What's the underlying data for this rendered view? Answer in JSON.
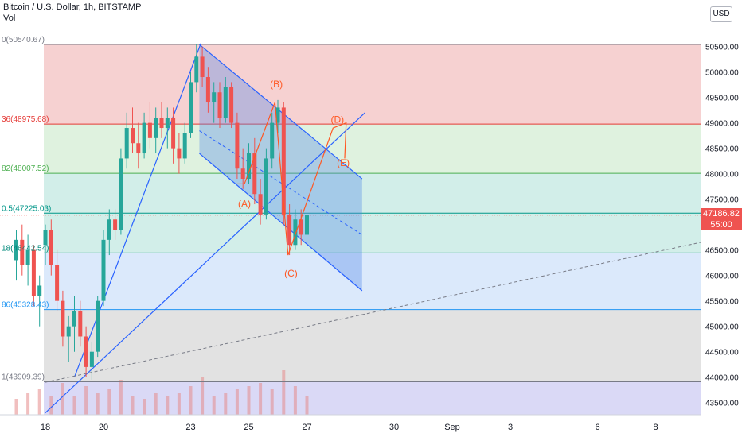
{
  "header": {
    "symbol": "Bitcoin / U.S. Dollar, 1h, BITSTAMP",
    "vol_label": "Vol",
    "currency_button": "USD"
  },
  "price_tag": {
    "price": "47186.82",
    "countdown": "55:00"
  },
  "colors": {
    "red_zone": "#f6d1d1",
    "green_zone": "#dff2df",
    "teal_zone": "#d2eee9",
    "blue_zone": "#dbe9fb",
    "gray_zone": "#e2e2e2",
    "lilac_zone": "#dad9f6",
    "channel_fill": "#4f86e8",
    "up_candle": "#26a69a",
    "down_candle": "#ef5350",
    "trend_line": "#2962ff",
    "wave": "#ff5722"
  },
  "chart_data": {
    "type": "candlestick",
    "title": "Bitcoin / U.S. Dollar, 1h, BITSTAMP",
    "x_ticks": [
      {
        "day": 18,
        "label": "18"
      },
      {
        "day": 20,
        "label": "20"
      },
      {
        "day": 23,
        "label": "23"
      },
      {
        "day": 25,
        "label": "25"
      },
      {
        "day": 27,
        "label": "27"
      },
      {
        "day": 30,
        "label": "30"
      },
      {
        "day": 32,
        "label": "Sep"
      },
      {
        "day": 34,
        "label": "3"
      },
      {
        "day": 37,
        "label": "6"
      },
      {
        "day": 39,
        "label": "8"
      }
    ],
    "y_ticks": [
      "50500.00",
      "50000.00",
      "49500.00",
      "49000.00",
      "48500.00",
      "48000.00",
      "47500.00",
      "47000.00",
      "46500.00",
      "46000.00",
      "45500.00",
      "45000.00",
      "44500.00",
      "44000.00",
      "43500.00"
    ],
    "y_values": [
      50500,
      50000,
      49500,
      49000,
      48500,
      48000,
      47500,
      47000,
      46500,
      46000,
      45500,
      45000,
      44500,
      44000,
      43500
    ],
    "ylim": [
      43300,
      51200
    ],
    "last_price": 47186.82,
    "fib_levels": [
      {
        "label": "0(50540.67)",
        "price": 50540.67,
        "color": "#787b86"
      },
      {
        "label": "36(48975.68)",
        "price": 48975.68,
        "color": "#e53935"
      },
      {
        "label": "82(48007.52)",
        "price": 48007.52,
        "color": "#4caf50"
      },
      {
        "label": "0.5(47225.03)",
        "price": 47225.03,
        "color": "#009688"
      },
      {
        "label": "18(46442.54)",
        "price": 46442.54,
        "color": "#00897b"
      },
      {
        "label": "86(45328.43)",
        "price": 45328.43,
        "color": "#2196f3"
      },
      {
        "label": "1(43909.39)",
        "price": 43909.39,
        "color": "#787b86"
      }
    ],
    "wave_labels": [
      {
        "label": "(A)",
        "day": 24.85,
        "price": 47350
      },
      {
        "label": "(B)",
        "day": 25.95,
        "price": 49700
      },
      {
        "label": "(C)",
        "day": 26.45,
        "price": 45980
      },
      {
        "label": "(D)",
        "day": 28.05,
        "price": 49000
      },
      {
        "label": "(E)",
        "day": 28.25,
        "price": 48150
      }
    ],
    "candles": [
      {
        "d": 17.0,
        "o": 46300,
        "h": 46900,
        "l": 45900,
        "c": 46700
      },
      {
        "d": 17.2,
        "o": 46700,
        "h": 47000,
        "l": 46000,
        "c": 46200
      },
      {
        "d": 17.4,
        "o": 46200,
        "h": 46800,
        "l": 45800,
        "c": 46500
      },
      {
        "d": 17.6,
        "o": 46500,
        "h": 46600,
        "l": 45400,
        "c": 45600
      },
      {
        "d": 17.8,
        "o": 45600,
        "h": 46000,
        "l": 45000,
        "c": 45800
      },
      {
        "d": 18.0,
        "o": 46600,
        "h": 47000,
        "l": 46200,
        "c": 46900
      },
      {
        "d": 18.2,
        "o": 46900,
        "h": 47100,
        "l": 46000,
        "c": 46200
      },
      {
        "d": 18.4,
        "o": 46200,
        "h": 46500,
        "l": 45300,
        "c": 45500
      },
      {
        "d": 18.6,
        "o": 45500,
        "h": 45700,
        "l": 44600,
        "c": 44800
      },
      {
        "d": 18.8,
        "o": 44800,
        "h": 45200,
        "l": 44300,
        "c": 45000
      },
      {
        "d": 19.0,
        "o": 45000,
        "h": 45600,
        "l": 44500,
        "c": 45300
      },
      {
        "d": 19.2,
        "o": 45300,
        "h": 45500,
        "l": 44600,
        "c": 44800
      },
      {
        "d": 19.4,
        "o": 44800,
        "h": 45000,
        "l": 44000,
        "c": 44200
      },
      {
        "d": 19.6,
        "o": 44200,
        "h": 44700,
        "l": 43950,
        "c": 44500
      },
      {
        "d": 19.8,
        "o": 44500,
        "h": 45600,
        "l": 44400,
        "c": 45500
      },
      {
        "d": 20.0,
        "o": 45500,
        "h": 46900,
        "l": 45400,
        "c": 46700
      },
      {
        "d": 20.2,
        "o": 46700,
        "h": 47300,
        "l": 46400,
        "c": 47100
      },
      {
        "d": 20.4,
        "o": 47100,
        "h": 47300,
        "l": 46700,
        "c": 46900
      },
      {
        "d": 20.6,
        "o": 46900,
        "h": 48500,
        "l": 46800,
        "c": 48300
      },
      {
        "d": 20.8,
        "o": 48300,
        "h": 49200,
        "l": 48100,
        "c": 48900
      },
      {
        "d": 21.0,
        "o": 48900,
        "h": 49300,
        "l": 48400,
        "c": 48600
      },
      {
        "d": 21.2,
        "o": 48600,
        "h": 49000,
        "l": 48100,
        "c": 48400
      },
      {
        "d": 21.4,
        "o": 48400,
        "h": 49200,
        "l": 48300,
        "c": 49000
      },
      {
        "d": 21.6,
        "o": 49000,
        "h": 49400,
        "l": 48500,
        "c": 48700
      },
      {
        "d": 21.8,
        "o": 48700,
        "h": 49300,
        "l": 48400,
        "c": 49100
      },
      {
        "d": 22.0,
        "o": 49100,
        "h": 49400,
        "l": 48700,
        "c": 48900
      },
      {
        "d": 22.2,
        "o": 48900,
        "h": 49300,
        "l": 48500,
        "c": 49100
      },
      {
        "d": 22.4,
        "o": 49100,
        "h": 49300,
        "l": 48200,
        "c": 48500
      },
      {
        "d": 22.6,
        "o": 48500,
        "h": 48800,
        "l": 48000,
        "c": 48300
      },
      {
        "d": 22.8,
        "o": 48300,
        "h": 49000,
        "l": 48200,
        "c": 48800
      },
      {
        "d": 23.0,
        "o": 48800,
        "h": 50000,
        "l": 48700,
        "c": 49800
      },
      {
        "d": 23.2,
        "o": 49800,
        "h": 50550,
        "l": 49600,
        "c": 50300
      },
      {
        "d": 23.4,
        "o": 50300,
        "h": 50500,
        "l": 49700,
        "c": 49900
      },
      {
        "d": 23.6,
        "o": 49900,
        "h": 50100,
        "l": 49200,
        "c": 49400
      },
      {
        "d": 23.8,
        "o": 49400,
        "h": 49800,
        "l": 49000,
        "c": 49600
      },
      {
        "d": 24.0,
        "o": 49600,
        "h": 49800,
        "l": 48900,
        "c": 49100
      },
      {
        "d": 24.2,
        "o": 49100,
        "h": 49900,
        "l": 49000,
        "c": 49700
      },
      {
        "d": 24.4,
        "o": 49700,
        "h": 49800,
        "l": 48900,
        "c": 49000
      },
      {
        "d": 24.6,
        "o": 49000,
        "h": 49200,
        "l": 47900,
        "c": 48100
      },
      {
        "d": 24.8,
        "o": 48100,
        "h": 48500,
        "l": 47700,
        "c": 47900
      },
      {
        "d": 25.0,
        "o": 47900,
        "h": 48600,
        "l": 47800,
        "c": 48400
      },
      {
        "d": 25.2,
        "o": 48400,
        "h": 48700,
        "l": 47400,
        "c": 47600
      },
      {
        "d": 25.4,
        "o": 47600,
        "h": 47900,
        "l": 47000,
        "c": 47200
      },
      {
        "d": 25.6,
        "o": 47200,
        "h": 48500,
        "l": 47100,
        "c": 48300
      },
      {
        "d": 25.8,
        "o": 48300,
        "h": 49200,
        "l": 48100,
        "c": 49000
      },
      {
        "d": 26.0,
        "o": 49000,
        "h": 49450,
        "l": 48800,
        "c": 49300
      },
      {
        "d": 26.2,
        "o": 49300,
        "h": 49400,
        "l": 47000,
        "c": 47200
      },
      {
        "d": 26.4,
        "o": 47200,
        "h": 47400,
        "l": 46400,
        "c": 46600
      },
      {
        "d": 26.6,
        "o": 46600,
        "h": 47300,
        "l": 46500,
        "c": 47100
      },
      {
        "d": 26.8,
        "o": 47100,
        "h": 47300,
        "l": 46600,
        "c": 46800
      },
      {
        "d": 27.0,
        "o": 46800,
        "h": 47300,
        "l": 46700,
        "c": 47187
      }
    ],
    "volumes": [
      {
        "d": 17.0,
        "v": 0.25
      },
      {
        "d": 17.4,
        "v": 0.35
      },
      {
        "d": 17.8,
        "v": 0.4
      },
      {
        "d": 18.2,
        "v": 0.3
      },
      {
        "d": 18.6,
        "v": 0.5
      },
      {
        "d": 19.0,
        "v": 0.3
      },
      {
        "d": 19.4,
        "v": 0.45
      },
      {
        "d": 19.8,
        "v": 0.35
      },
      {
        "d": 20.2,
        "v": 0.4
      },
      {
        "d": 20.6,
        "v": 0.55
      },
      {
        "d": 21.0,
        "v": 0.3
      },
      {
        "d": 21.4,
        "v": 0.25
      },
      {
        "d": 21.8,
        "v": 0.35
      },
      {
        "d": 22.2,
        "v": 0.3
      },
      {
        "d": 22.6,
        "v": 0.35
      },
      {
        "d": 23.0,
        "v": 0.45
      },
      {
        "d": 23.4,
        "v": 0.6
      },
      {
        "d": 23.8,
        "v": 0.3
      },
      {
        "d": 24.2,
        "v": 0.35
      },
      {
        "d": 24.6,
        "v": 0.4
      },
      {
        "d": 25.0,
        "v": 0.45
      },
      {
        "d": 25.4,
        "v": 0.5
      },
      {
        "d": 25.8,
        "v": 0.4
      },
      {
        "d": 26.2,
        "v": 0.7
      },
      {
        "d": 26.6,
        "v": 0.45
      },
      {
        "d": 27.0,
        "v": 0.3
      }
    ]
  }
}
